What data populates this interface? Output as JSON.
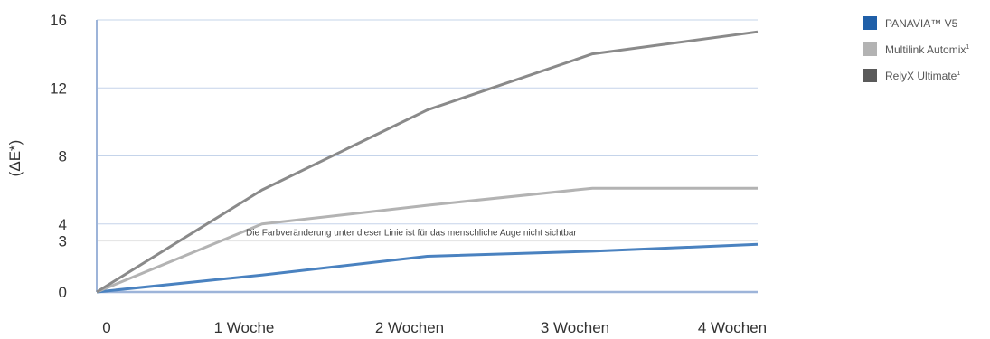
{
  "chart_data": {
    "type": "line",
    "ylabel": "(ΔE*)",
    "categories": [
      "0",
      "1 Woche",
      "2 Wochen",
      "3 Wochen",
      "4 Wochen"
    ],
    "yticks": [
      0,
      3,
      4,
      8,
      12,
      16
    ],
    "ylim": [
      0,
      16
    ],
    "grid": true,
    "legend_position": "top-right",
    "threshold": {
      "value": 3,
      "label": "Die Farbveränderung unter dieser Linie ist für das menschliche Auge nicht sichtbar"
    },
    "series": [
      {
        "name": "PANAVIA™ V5",
        "superscript": "",
        "color": "#4a82c0",
        "values": [
          0,
          1,
          2.1,
          2.4,
          2.8
        ]
      },
      {
        "name": "Multilink Automix",
        "superscript": "1",
        "color": "#b3b3b3",
        "values": [
          0,
          4,
          5.1,
          6.1,
          6.1
        ]
      },
      {
        "name": "RelyX Ultimate",
        "superscript": "1",
        "color": "#8a8a8a",
        "values": [
          0,
          6,
          10.7,
          14,
          15.3
        ]
      }
    ],
    "legend_swatch_colors": [
      "#1f5fa8",
      "#b3b3b3",
      "#5a5a5a"
    ]
  }
}
